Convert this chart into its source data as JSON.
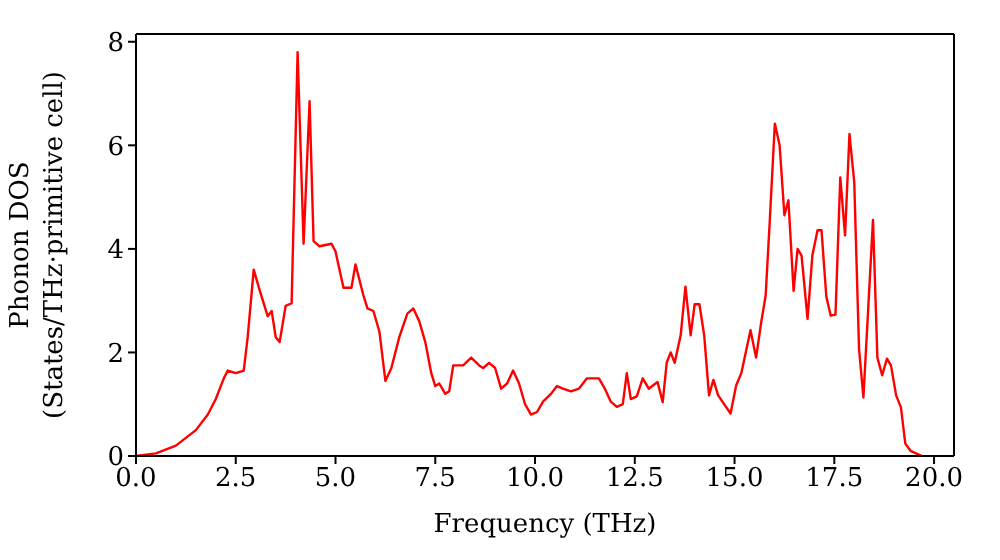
{
  "chart_data": {
    "type": "line",
    "xlabel": "Frequency (THz)",
    "ylabel": "Phonon DOS\n(States/THz·primitive cell)",
    "x": [
      0,
      0.5,
      1,
      1.5,
      1.8,
      2.0,
      2.2,
      2.3,
      2.5,
      2.7,
      2.8,
      2.95,
      3.1,
      3.3,
      3.4,
      3.5,
      3.6,
      3.75,
      3.9,
      4.05,
      4.2,
      4.35,
      4.45,
      4.6,
      4.9,
      5.0,
      5.2,
      5.4,
      5.5,
      5.7,
      5.8,
      5.95,
      6.1,
      6.25,
      6.4,
      6.6,
      6.8,
      6.95,
      7.1,
      7.25,
      7.4,
      7.5,
      7.6,
      7.75,
      7.85,
      7.95,
      8.2,
      8.4,
      8.6,
      8.7,
      8.85,
      9.0,
      9.15,
      9.3,
      9.45,
      9.6,
      9.75,
      9.9,
      10.05,
      10.2,
      10.4,
      10.55,
      10.7,
      10.9,
      11.1,
      11.3,
      11.6,
      11.75,
      11.9,
      12.05,
      12.2,
      12.3,
      12.4,
      12.55,
      12.7,
      12.85,
      13.07,
      13.2,
      13.3,
      13.4,
      13.5,
      13.65,
      13.77,
      13.9,
      14.0,
      14.12,
      14.24,
      14.36,
      14.47,
      14.59,
      14.9,
      15.04,
      15.17,
      15.4,
      15.54,
      15.67,
      15.78,
      15.88,
      16.01,
      16.13,
      16.25,
      16.35,
      16.48,
      16.58,
      16.68,
      16.83,
      16.95,
      17.08,
      17.18,
      17.3,
      17.41,
      17.53,
      17.65,
      17.77,
      17.88,
      18.0,
      18.12,
      18.23,
      18.35,
      18.47,
      18.58,
      18.7,
      18.82,
      18.92,
      19.05,
      19.17,
      19.28,
      19.41,
      19.55,
      19.7
    ],
    "series": [
      {
        "color": "#ff0000",
        "values": [
          0,
          0.05,
          0.2,
          0.5,
          0.8,
          1.1,
          1.5,
          1.65,
          1.6,
          1.65,
          2.3,
          3.6,
          3.2,
          2.7,
          2.8,
          2.3,
          2.2,
          2.9,
          2.95,
          7.8,
          4.1,
          6.85,
          4.15,
          4.05,
          4.1,
          3.95,
          3.25,
          3.25,
          3.7,
          3.1,
          2.85,
          2.8,
          2.4,
          1.45,
          1.7,
          2.3,
          2.75,
          2.85,
          2.6,
          2.2,
          1.6,
          1.35,
          1.4,
          1.2,
          1.25,
          1.75,
          1.75,
          1.9,
          1.75,
          1.7,
          1.8,
          1.7,
          1.3,
          1.4,
          1.65,
          1.4,
          1.0,
          0.8,
          0.85,
          1.05,
          1.2,
          1.35,
          1.3,
          1.25,
          1.3,
          1.5,
          1.5,
          1.3,
          1.05,
          0.95,
          1.0,
          1.6,
          1.1,
          1.15,
          1.5,
          1.3,
          1.43,
          1.04,
          1.8,
          2.0,
          1.8,
          2.33,
          3.27,
          2.33,
          2.93,
          2.93,
          2.33,
          1.17,
          1.47,
          1.17,
          0.82,
          1.36,
          1.6,
          2.43,
          1.9,
          2.59,
          3.1,
          4.5,
          6.42,
          6.0,
          4.65,
          4.94,
          3.19,
          4.0,
          3.87,
          2.65,
          3.87,
          4.36,
          4.36,
          3.08,
          2.71,
          2.73,
          5.38,
          4.26,
          6.22,
          5.29,
          2.07,
          1.13,
          2.85,
          4.56,
          1.9,
          1.56,
          1.88,
          1.75,
          1.17,
          0.94,
          0.24,
          0.1,
          0.05,
          0
        ]
      }
    ],
    "xlim": [
      0,
      20.5
    ],
    "xticks": [
      {
        "value": 0,
        "label": "0.0"
      },
      {
        "value": 2.5,
        "label": "2.5"
      },
      {
        "value": 5,
        "label": "5.0"
      },
      {
        "value": 7.5,
        "label": "7.5"
      },
      {
        "value": 10,
        "label": "10.0"
      },
      {
        "value": 12.5,
        "label": "12.5"
      },
      {
        "value": 15,
        "label": "15.0"
      },
      {
        "value": 17.5,
        "label": "17.5"
      },
      {
        "value": 20,
        "label": "20.0"
      }
    ],
    "ylim": [
      0,
      8.15
    ],
    "yticks": [
      0,
      2,
      4,
      6,
      8
    ],
    "marker": "none",
    "line_style": "solid"
  }
}
